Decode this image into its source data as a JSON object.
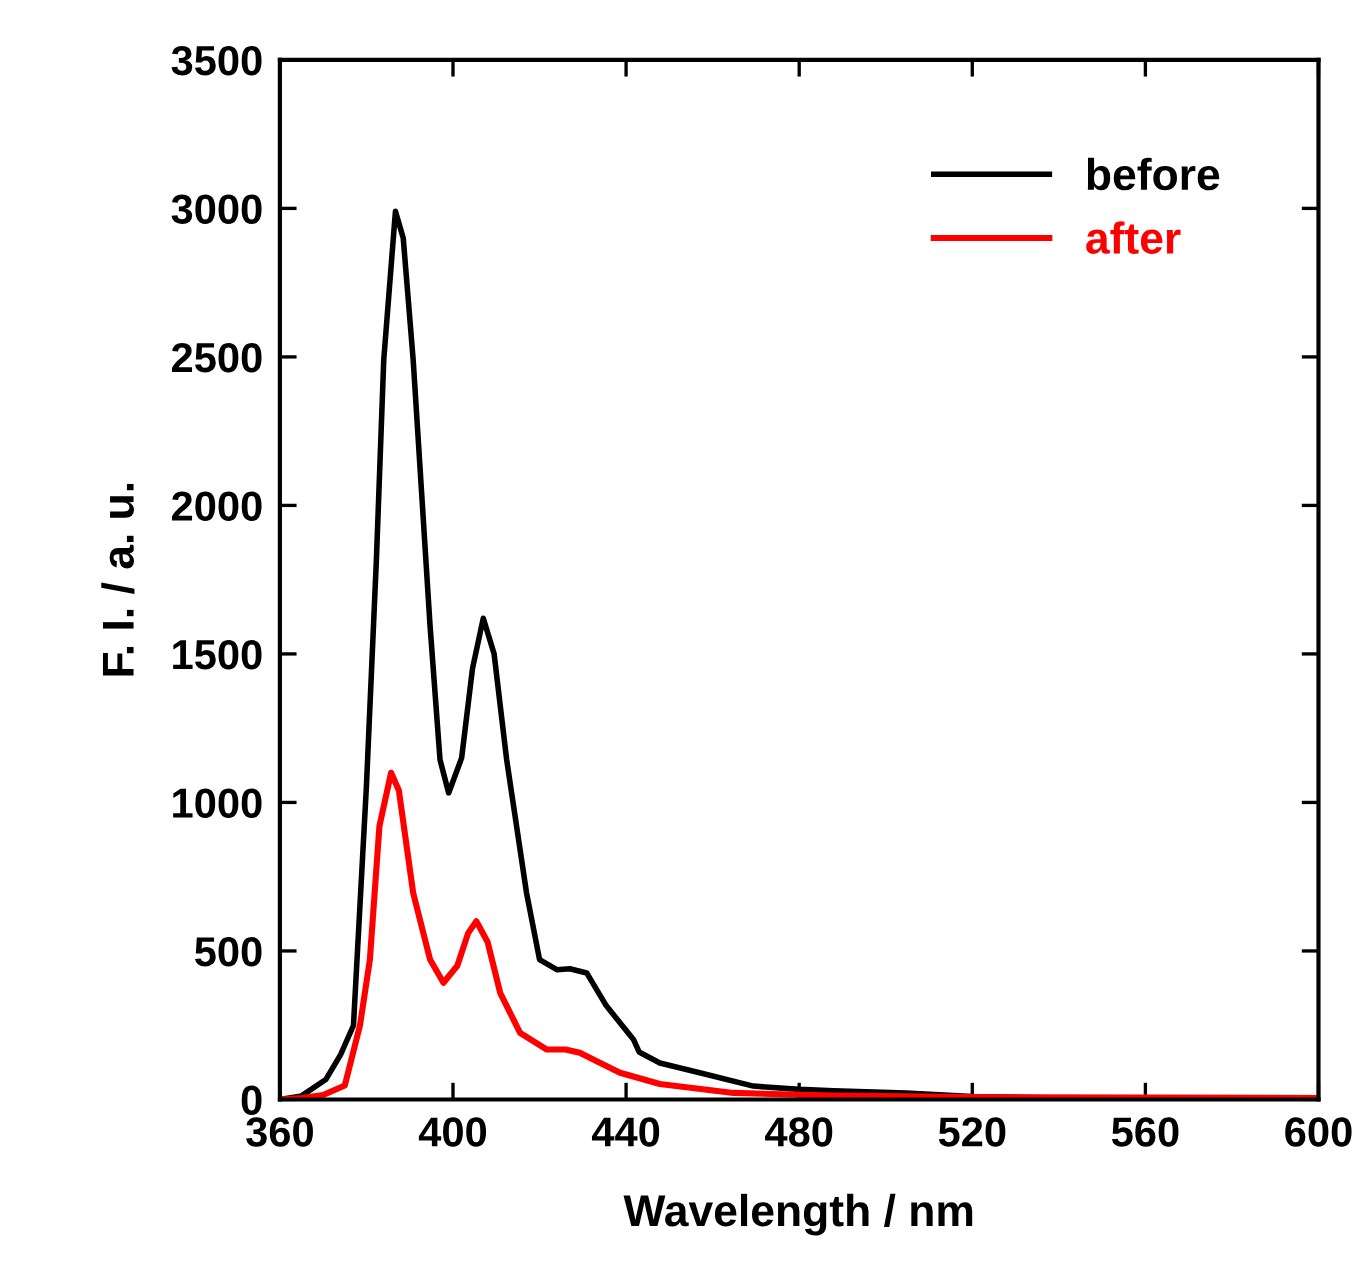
{
  "chart_data": {
    "type": "line",
    "xlabel": "Wavelength / nm",
    "ylabel": "F. I. / a. u.",
    "xlim": [
      360,
      600
    ],
    "xticks": [
      360,
      400,
      440,
      480,
      520,
      560,
      600
    ],
    "ylim": [
      0,
      3500
    ],
    "yticks": [
      0,
      500,
      1000,
      1500,
      2000,
      2500,
      3000,
      3500
    ],
    "grid": false,
    "legend": "top right",
    "marker": "none",
    "line_style": "solid",
    "series": [
      {
        "name": "before",
        "color": "#000000",
        "x": [
          360,
          365,
          370.6,
          374,
          377,
          380,
          382.3,
          384,
          386.7,
          388.5,
          390.8,
          394.7,
          397,
          399,
          402,
          404.5,
          407,
          409.5,
          412.4,
          417,
          420,
          424,
          427,
          430.9,
          435.4,
          441.7,
          443,
          447.8,
          457,
          469.4,
          480,
          488,
          504.7,
          520,
          540,
          560,
          580,
          600
        ],
        "values": [
          0,
          12,
          67,
          150,
          249,
          1056,
          1817,
          2490,
          2990,
          2900,
          2490,
          1595,
          1144,
          1032,
          1150,
          1450,
          1620,
          1500,
          1144,
          695,
          471,
          437,
          440,
          426,
          316,
          202,
          160,
          123,
          90,
          45,
          34,
          29,
          22,
          10,
          5,
          3,
          2,
          2
        ]
      },
      {
        "name": "after",
        "color": "#ff0000",
        "x": [
          360,
          365,
          370,
          375,
          378.5,
          380.8,
          383,
          385.7,
          387.5,
          390.8,
          394.7,
          397.8,
          401,
          403.5,
          405.4,
          408,
          410.9,
          415.5,
          421.7,
          426,
          429.3,
          433,
          438.6,
          447.8,
          464.8,
          488,
          520,
          560,
          600
        ],
        "values": [
          0,
          5,
          15,
          47,
          249,
          471,
          920,
          1100,
          1040,
          695,
          471,
          393,
          450,
          560,
          600,
          530,
          359,
          224,
          168,
          168,
          157,
          130,
          90,
          52,
          22,
          13,
          8,
          6,
          5
        ]
      }
    ]
  }
}
